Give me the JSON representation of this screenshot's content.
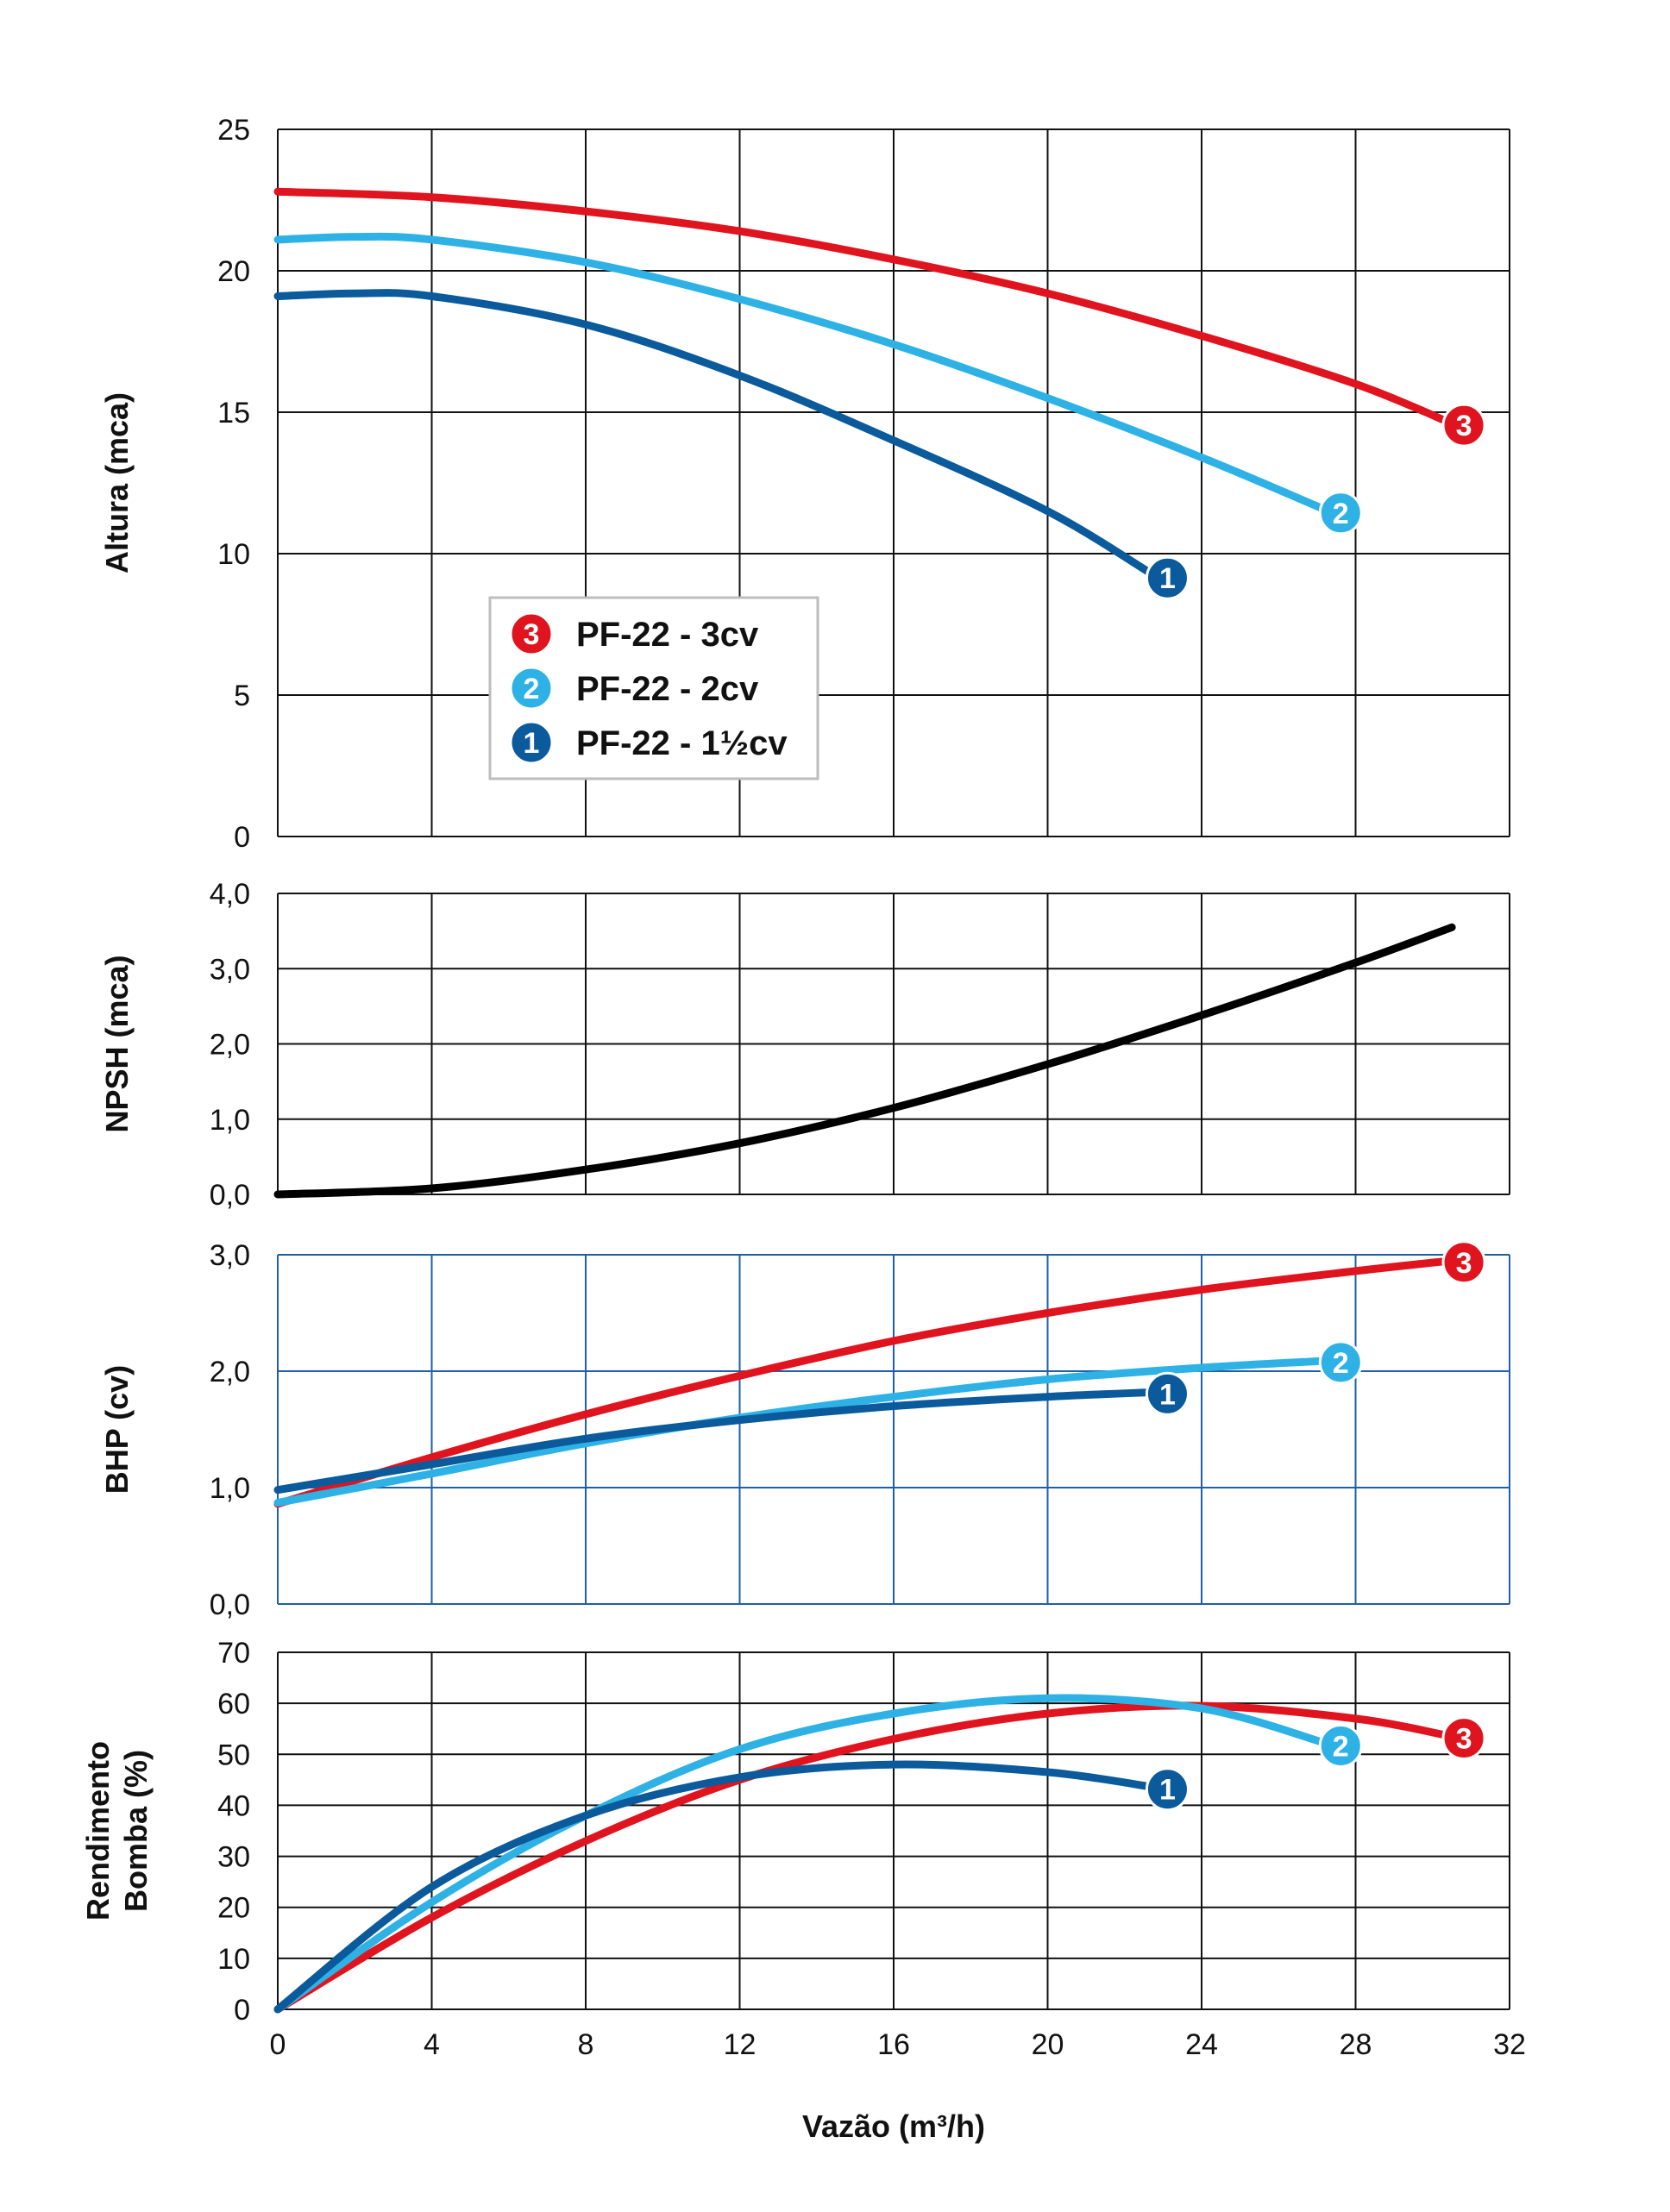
{
  "colors": {
    "pf22_3cv": "#e0141e",
    "pf22_2cv": "#2eb2e6",
    "pf22_1_5cv": "#0a5a9c",
    "npsh": "#000000",
    "grid_black": "#111111",
    "grid_blue": "#1f5fa8"
  },
  "x_axis": {
    "label": "Vazão (m³/h)",
    "ticks": [
      0,
      4,
      8,
      12,
      16,
      20,
      24,
      28,
      32
    ],
    "tick_labels": [
      "0",
      "4",
      "8",
      "12",
      "16",
      "20",
      "24",
      "28",
      "32"
    ],
    "range": [
      0,
      32
    ]
  },
  "legend": [
    {
      "badge": "3",
      "label": "PF-22 - 3cv"
    },
    {
      "badge": "2",
      "label": "PF-22 - 2cv"
    },
    {
      "badge": "1",
      "label": "PF-22 - 1½cv"
    }
  ],
  "chart_data": [
    {
      "type": "line",
      "title": "",
      "xlabel": "Vazão (m³/h)",
      "ylabel": "Altura (mca)",
      "ylim": [
        0,
        25
      ],
      "yticks": [
        0,
        5,
        10,
        15,
        20,
        25
      ],
      "ytick_labels": [
        "0",
        "5",
        "10",
        "15",
        "20",
        "25"
      ],
      "series": [
        {
          "name": "PF-22 - 3cv",
          "badge": "3",
          "x": [
            0,
            4,
            8,
            12,
            16,
            20,
            24,
            28,
            30.5
          ],
          "y": [
            22.8,
            22.6,
            22.1,
            21.4,
            20.4,
            19.2,
            17.7,
            16.0,
            14.6
          ]
        },
        {
          "name": "PF-22 - 2cv",
          "badge": "2",
          "x": [
            0,
            2,
            4,
            8,
            12,
            16,
            20,
            24,
            27.3
          ],
          "y": [
            21.1,
            21.2,
            21.1,
            20.3,
            19.0,
            17.4,
            15.5,
            13.4,
            11.5
          ]
        },
        {
          "name": "PF-22 - 1½cv",
          "badge": "1",
          "x": [
            0,
            2,
            4,
            8,
            12,
            16,
            20,
            22.8
          ],
          "y": [
            19.1,
            19.2,
            19.1,
            18.1,
            16.3,
            14.0,
            11.5,
            9.2
          ]
        }
      ]
    },
    {
      "type": "line",
      "title": "",
      "xlabel": "Vazão (m³/h)",
      "ylabel": "NPSH (mca)",
      "ylim": [
        0,
        4
      ],
      "yticks": [
        0,
        1,
        2,
        3,
        4
      ],
      "ytick_labels": [
        "0,0",
        "1,0",
        "2,0",
        "3,0",
        "4,0"
      ],
      "series": [
        {
          "name": "NPSH",
          "x": [
            0,
            4,
            8,
            12,
            16,
            20,
            24,
            28,
            30.5
          ],
          "y": [
            0.0,
            0.08,
            0.33,
            0.68,
            1.15,
            1.73,
            2.38,
            3.08,
            3.55
          ]
        }
      ]
    },
    {
      "type": "line",
      "title": "",
      "xlabel": "Vazão (m³/h)",
      "ylabel": "BHP (cv)",
      "ylim": [
        0,
        3
      ],
      "yticks": [
        0,
        1,
        2,
        3
      ],
      "ytick_labels": [
        "0,0",
        "1,0",
        "2,0",
        "3,0"
      ],
      "series": [
        {
          "name": "PF-22 - 3cv",
          "badge": "3",
          "x": [
            0,
            4,
            8,
            12,
            16,
            20,
            24,
            28,
            30.5
          ],
          "y": [
            0.86,
            1.26,
            1.63,
            1.96,
            2.26,
            2.5,
            2.7,
            2.86,
            2.95
          ]
        },
        {
          "name": "PF-22 - 2cv",
          "badge": "2",
          "x": [
            0,
            4,
            8,
            12,
            16,
            20,
            24,
            27.3
          ],
          "y": [
            0.87,
            1.12,
            1.38,
            1.6,
            1.78,
            1.93,
            2.03,
            2.09
          ]
        },
        {
          "name": "PF-22 - 1½cv",
          "badge": "1",
          "x": [
            0,
            4,
            8,
            12,
            16,
            20,
            22.8
          ],
          "y": [
            0.98,
            1.2,
            1.42,
            1.58,
            1.7,
            1.78,
            1.82
          ]
        }
      ]
    },
    {
      "type": "line",
      "title": "",
      "xlabel": "Vazão (m³/h)",
      "ylabel": "Rendimento Bomba (%)",
      "ylabel_lines": [
        "Rendimento",
        "Bomba (%)"
      ],
      "ylim": [
        0,
        70
      ],
      "yticks": [
        0,
        10,
        20,
        30,
        40,
        50,
        60,
        70
      ],
      "ytick_labels": [
        "0",
        "10",
        "20",
        "30",
        "40",
        "50",
        "60",
        "70"
      ],
      "series": [
        {
          "name": "PF-22 - 3cv",
          "badge": "3",
          "x": [
            0,
            4,
            8,
            12,
            16,
            20,
            24,
            28,
            30.5
          ],
          "y": [
            0,
            18,
            33,
            45,
            53,
            58,
            59.5,
            57,
            53.5
          ]
        },
        {
          "name": "PF-22 - 2cv",
          "badge": "2",
          "x": [
            0,
            4,
            8,
            12,
            16,
            20,
            24,
            27.3
          ],
          "y": [
            0,
            21,
            38,
            51,
            58,
            61,
            59,
            52
          ]
        },
        {
          "name": "PF-22 - 1½cv",
          "badge": "1",
          "x": [
            0,
            4,
            8,
            12,
            16,
            20,
            22.8
          ],
          "y": [
            0,
            24,
            38,
            45.5,
            48,
            46.5,
            43.5
          ]
        }
      ]
    }
  ]
}
